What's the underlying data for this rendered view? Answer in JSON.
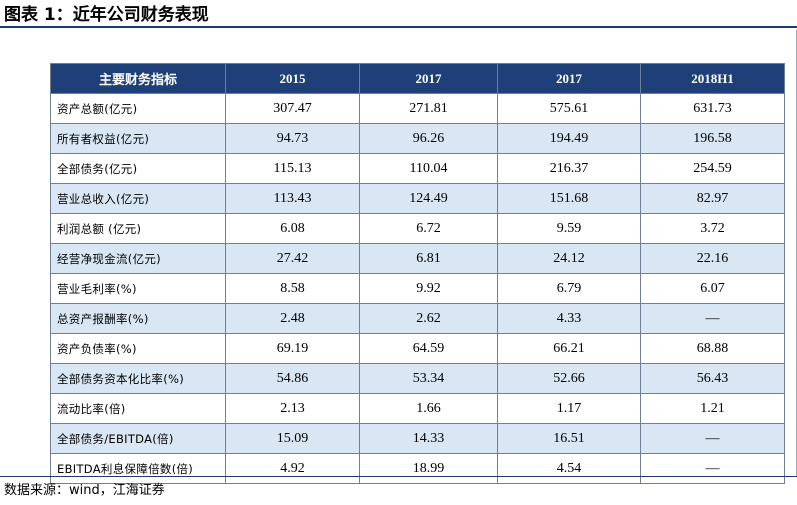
{
  "title": "图表 1：近年公司财务表现",
  "table": {
    "headers": [
      "主要财务指标",
      "2015",
      "2017",
      "2017",
      "2018H1"
    ],
    "rows": [
      [
        "资产总额(亿元)",
        "307.47",
        "271.81",
        "575.61",
        "631.73"
      ],
      [
        "所有者权益(亿元)",
        "94.73",
        "96.26",
        "194.49",
        "196.58"
      ],
      [
        "全部债务(亿元)",
        "115.13",
        "110.04",
        "216.37",
        "254.59"
      ],
      [
        "营业总收入(亿元)",
        "113.43",
        "124.49",
        "151.68",
        "82.97"
      ],
      [
        "利润总额 (亿元)",
        "6.08",
        "6.72",
        "9.59",
        "3.72"
      ],
      [
        "经营净现金流(亿元)",
        "27.42",
        "6.81",
        "24.12",
        "22.16"
      ],
      [
        "营业毛利率(%)",
        "8.58",
        "9.92",
        "6.79",
        "6.07"
      ],
      [
        "总资产报酬率(%)",
        "2.48",
        "2.62",
        "4.33",
        "—"
      ],
      [
        "资产负债率(%)",
        "69.19",
        "64.59",
        "66.21",
        "68.88"
      ],
      [
        "全部债务资本化比率(%)",
        "54.86",
        "53.34",
        "52.66",
        "56.43"
      ],
      [
        "流动比率(倍)",
        "2.13",
        "1.66",
        "1.17",
        "1.21"
      ],
      [
        "全部债务/EBITDA(倍)",
        "15.09",
        "14.33",
        "16.51",
        "—"
      ],
      [
        "EBITDA利息保障倍数(倍)",
        "4.92",
        "18.99",
        "4.54",
        "—"
      ]
    ]
  },
  "source": "数据来源：wind，江海证券"
}
